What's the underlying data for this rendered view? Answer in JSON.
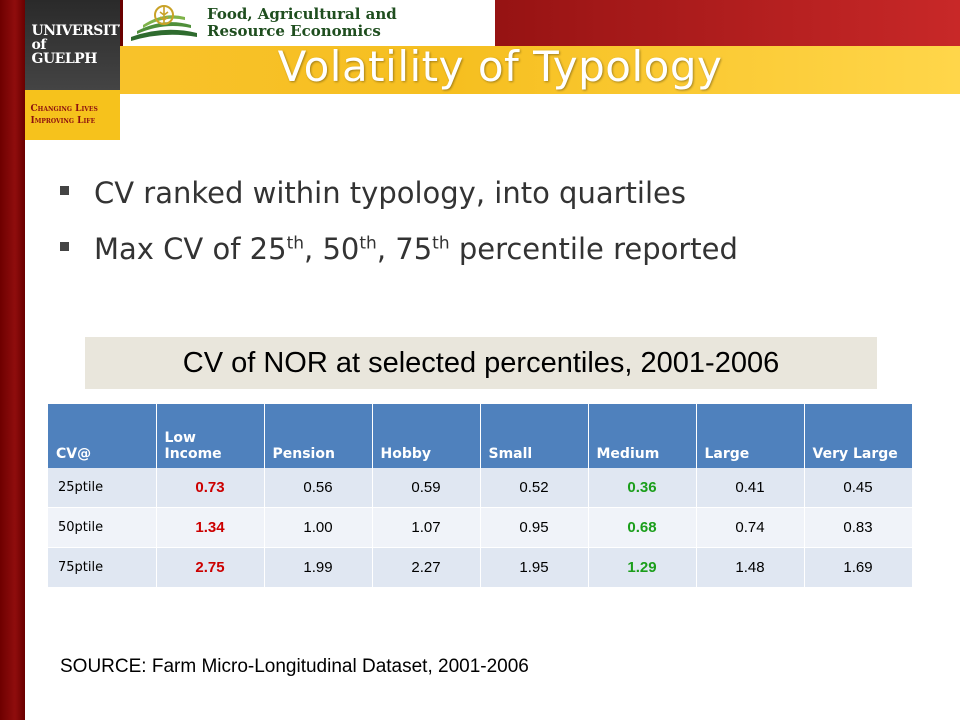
{
  "branding": {
    "university": "UNIVERSITY\nof GUELPH",
    "tagline": "Changing Lives\nImproving Life",
    "department": "Food, Agricultural and\nResource Economics"
  },
  "title": "Volatility of Typology",
  "bullets": [
    {
      "text": "CV ranked within typology, into quartiles"
    },
    {
      "pre": "Max CV of 25",
      "s1": "th",
      "mid1": ", 50",
      "s2": "th",
      "mid2": ", 75",
      "s3": "th",
      "post": " percentile reported"
    }
  ],
  "caption": "CV of NOR at selected percentiles, 2001-2006",
  "table": {
    "headers": [
      "CV@",
      "Low Income",
      "Pension",
      "Hobby",
      "Small",
      "Medium",
      "Large",
      "Very Large"
    ],
    "rows": [
      {
        "label": "25ptile",
        "cells": [
          "0.73",
          "0.56",
          "0.59",
          "0.52",
          "0.36",
          "0.41",
          "0.45"
        ]
      },
      {
        "label": "50ptile",
        "cells": [
          "1.34",
          "1.00",
          "1.07",
          "0.95",
          "0.68",
          "0.74",
          "0.83"
        ]
      },
      {
        "label": "75ptile",
        "cells": [
          "2.75",
          "1.99",
          "2.27",
          "1.95",
          "1.29",
          "1.48",
          "1.69"
        ]
      }
    ],
    "highlight": {
      "red_column": "Low Income",
      "green_column": "Medium",
      "red": "#cc0000",
      "green": "#1b9e1b"
    }
  },
  "source": "SOURCE: Farm Micro-Longitudinal Dataset, 2001-2006"
}
